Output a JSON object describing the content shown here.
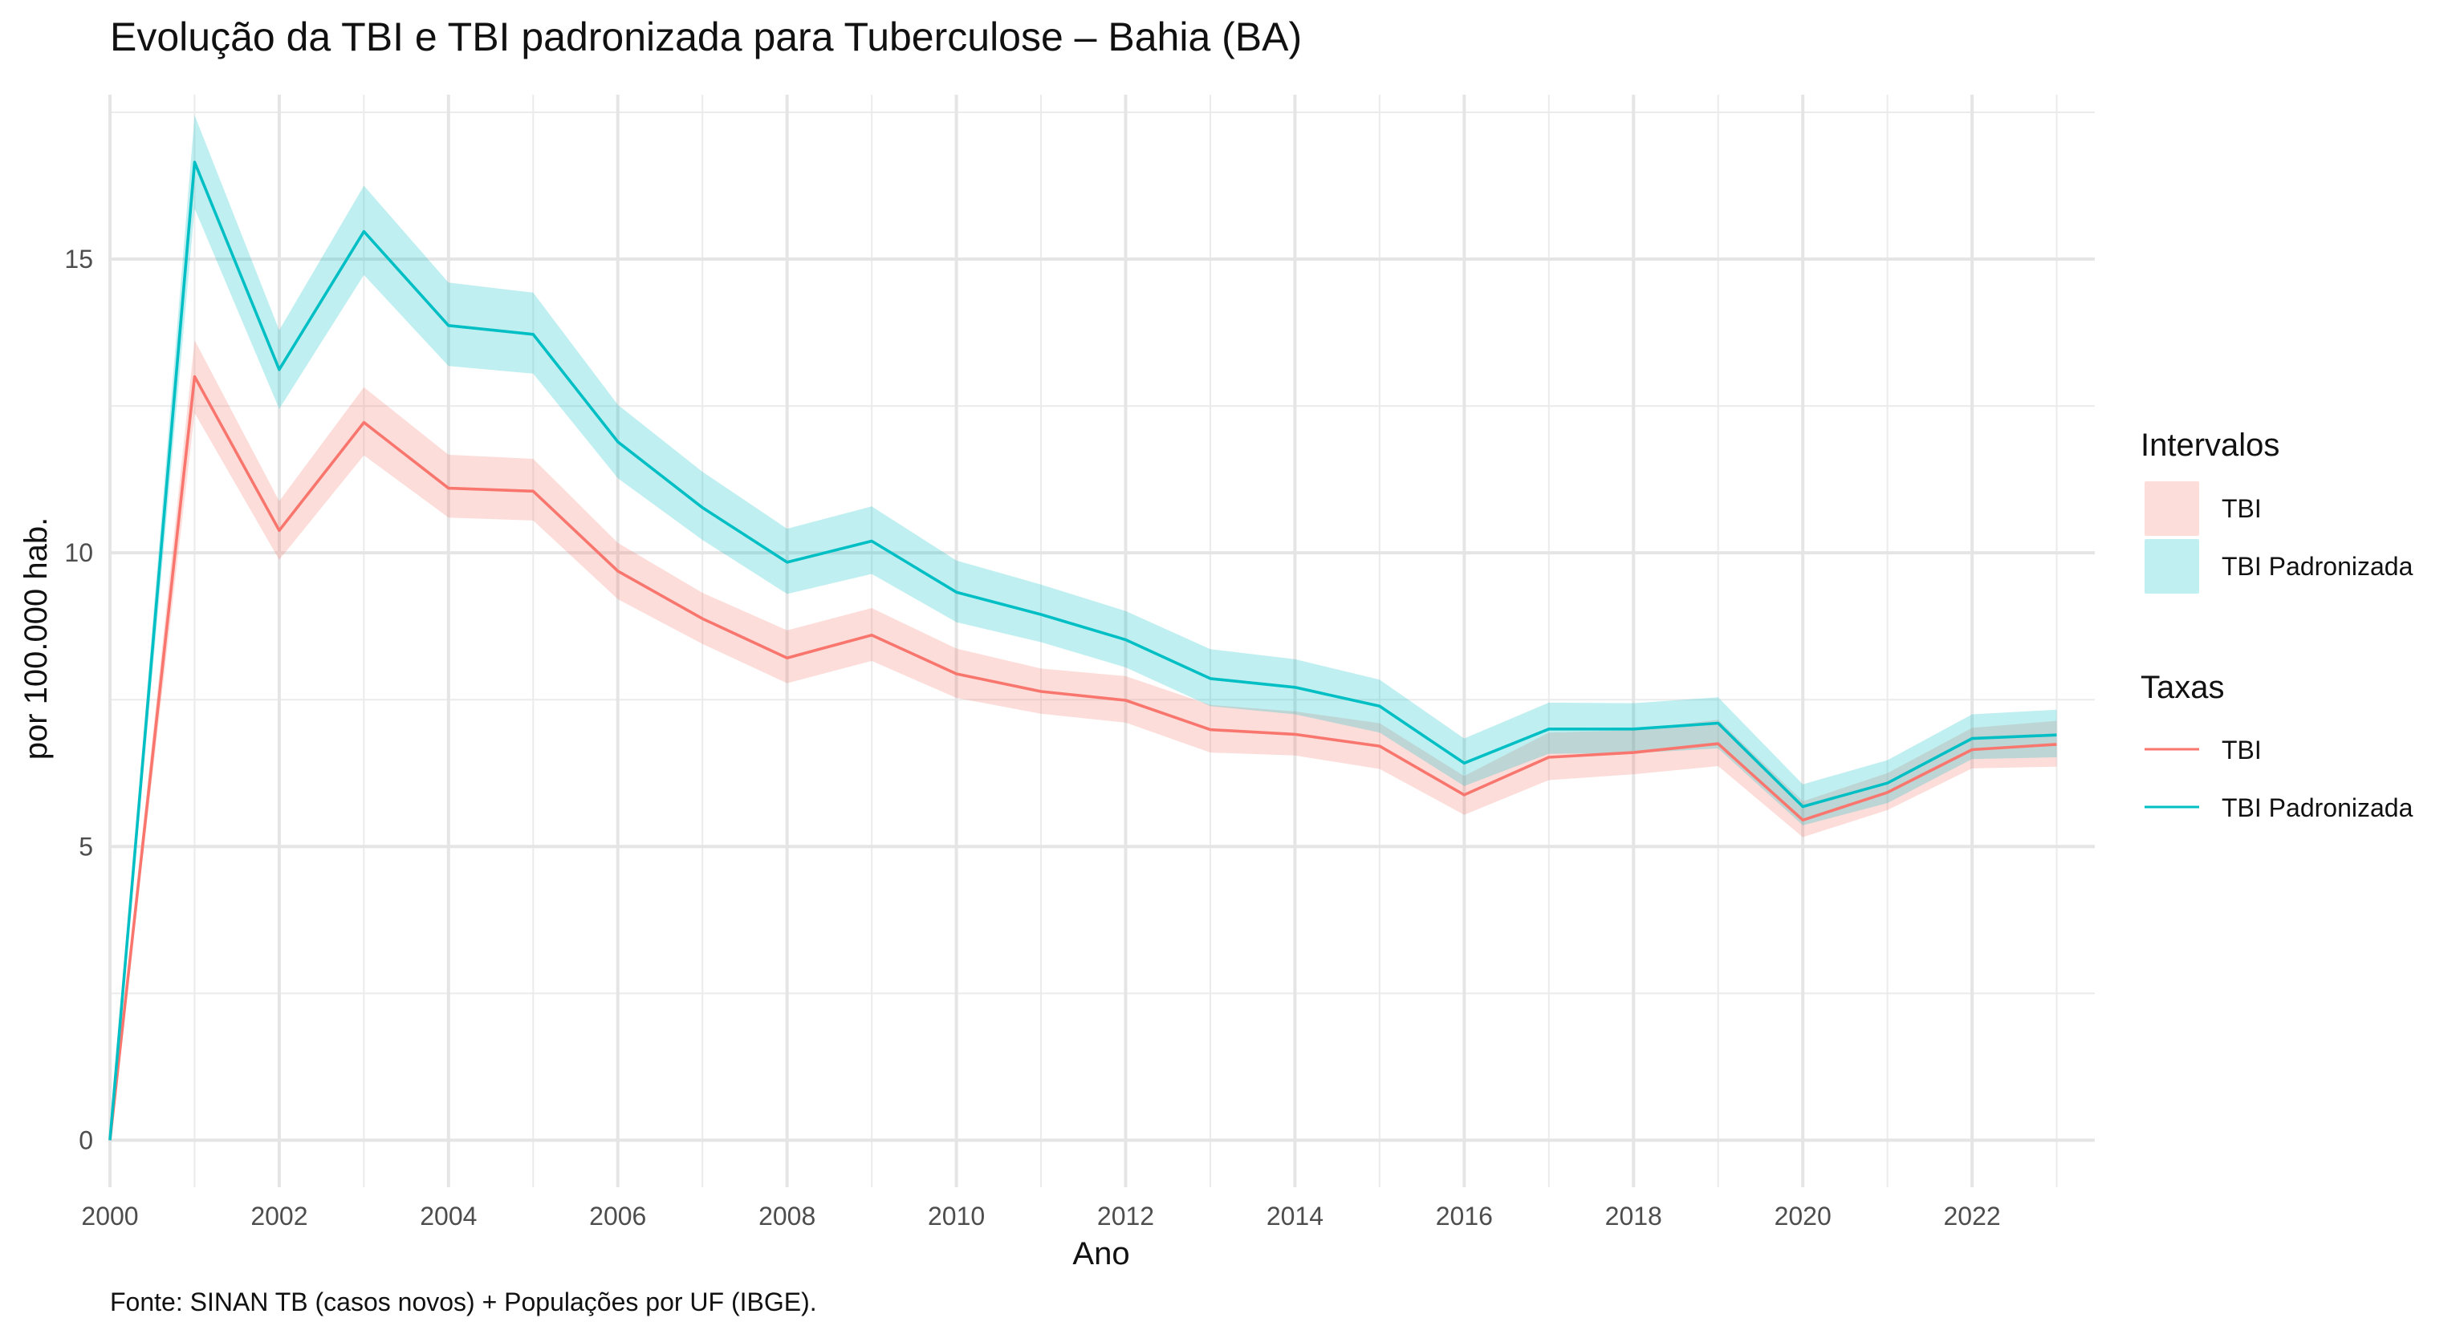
{
  "chart_data": {
    "type": "line",
    "title": "Evolução da TBI e TBI padronizada para Tuberculose – Bahia (BA)",
    "xlabel": "Ano",
    "ylabel": "por 100.000 hab.",
    "caption": "Fonte: SINAN TB (casos novos) + Populações por UF (IBGE).",
    "x": [
      2000,
      2001,
      2002,
      2003,
      2004,
      2005,
      2006,
      2007,
      2008,
      2009,
      2010,
      2011,
      2012,
      2013,
      2014,
      2015,
      2016,
      2017,
      2018,
      2019,
      2020,
      2021,
      2022,
      2023
    ],
    "xlim": [
      2000,
      2023.45
    ],
    "ylim": [
      -0.8,
      17.8
    ],
    "x_ticks": [
      2000,
      2002,
      2004,
      2006,
      2008,
      2010,
      2012,
      2014,
      2016,
      2018,
      2020,
      2022
    ],
    "x_tick_labels": [
      "2000",
      "2002",
      "2004",
      "2006",
      "2008",
      "2010",
      "2012",
      "2014",
      "2016",
      "2018",
      "2020",
      "2022"
    ],
    "y_ticks": [
      0,
      5,
      10,
      15
    ],
    "y_tick_labels": [
      "0",
      "5",
      "10",
      "15"
    ],
    "grid": true,
    "legend_position": "right",
    "legend": {
      "intervals_title": "Intervalos",
      "rates_title": "Taxas",
      "intervals": [
        {
          "label": "TBI",
          "color": "#f8766d"
        },
        {
          "label": "TBI Padronizada",
          "color": "#00bfc4"
        }
      ],
      "rates": [
        {
          "label": "TBI",
          "color": "#f8766d"
        },
        {
          "label": "TBI Padronizada",
          "color": "#00bfc4"
        }
      ]
    },
    "series": [
      {
        "name": "TBI",
        "color": "#f8766d",
        "values": [
          0.0,
          13.0,
          10.38,
          12.22,
          11.1,
          11.05,
          9.69,
          8.88,
          8.21,
          8.6,
          7.94,
          7.64,
          7.49,
          6.99,
          6.91,
          6.71,
          5.88,
          6.52,
          6.6,
          6.75,
          5.45,
          5.92,
          6.65,
          6.74
        ],
        "lower": [
          0.0,
          12.38,
          9.88,
          11.66,
          10.6,
          10.55,
          9.21,
          8.45,
          7.78,
          8.16,
          7.53,
          7.26,
          7.11,
          6.6,
          6.55,
          6.32,
          5.54,
          6.13,
          6.23,
          6.37,
          5.16,
          5.62,
          6.33,
          6.36
        ],
        "upper": [
          0.0,
          13.62,
          10.88,
          12.82,
          11.67,
          11.6,
          10.17,
          9.32,
          8.68,
          9.06,
          8.37,
          8.03,
          7.9,
          7.41,
          7.3,
          7.1,
          6.2,
          6.94,
          6.98,
          7.16,
          5.77,
          6.25,
          7.02,
          7.14
        ]
      },
      {
        "name": "TBI Padronizada",
        "color": "#00bfc4",
        "values": [
          0.0,
          16.65,
          13.12,
          15.47,
          13.87,
          13.72,
          11.89,
          10.77,
          9.84,
          10.2,
          9.33,
          8.95,
          8.52,
          7.86,
          7.71,
          7.39,
          6.42,
          7.0,
          7.0,
          7.1,
          5.68,
          6.08,
          6.84,
          6.9
        ],
        "lower": [
          0.0,
          15.86,
          12.45,
          14.73,
          13.18,
          13.05,
          11.27,
          10.22,
          9.3,
          9.64,
          8.82,
          8.48,
          8.05,
          7.39,
          7.25,
          6.94,
          6.03,
          6.58,
          6.59,
          6.67,
          5.36,
          5.74,
          6.49,
          6.52
        ],
        "upper": [
          0.0,
          17.45,
          13.79,
          16.25,
          14.6,
          14.43,
          12.52,
          11.38,
          10.41,
          10.79,
          9.87,
          9.46,
          9.01,
          8.36,
          8.19,
          7.84,
          6.84,
          7.45,
          7.44,
          7.54,
          6.06,
          6.47,
          7.25,
          7.33
        ]
      }
    ]
  }
}
